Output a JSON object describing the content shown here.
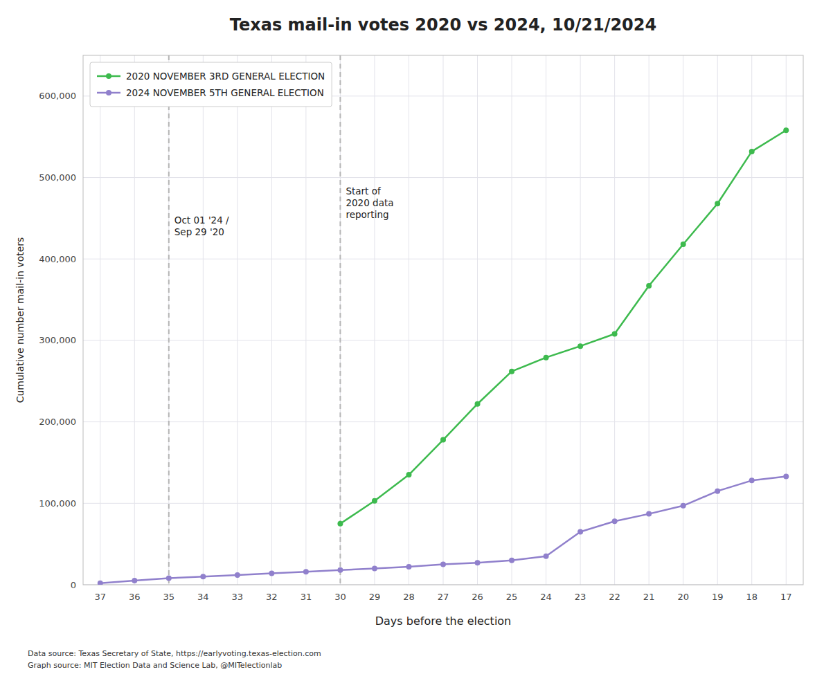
{
  "chart_data": {
    "type": "line",
    "title": "Texas mail-in votes 2020 vs 2024, 10/21/2024",
    "x_label": "Days before the election",
    "y_label": "Cumulative number mail-in voters",
    "series": [
      {
        "name": "2020 NOVEMBER 3RD GENERAL ELECTION",
        "color": "#3dba4e",
        "marker": "circle",
        "line_style": "solid",
        "x": [
          30,
          29,
          28,
          27,
          26,
          25,
          24,
          23,
          22,
          21,
          20,
          19,
          18,
          17
        ],
        "values": [
          75000,
          103000,
          135000,
          178000,
          222000,
          262000,
          279000,
          293000,
          308000,
          367000,
          418000,
          468000,
          532000,
          558000
        ]
      },
      {
        "name": "2024 NOVEMBER 5TH GENERAL ELECTION",
        "color": "#9080cc",
        "marker": "circle",
        "line_style": "solid",
        "x": [
          37,
          36,
          35,
          34,
          33,
          32,
          31,
          30,
          29,
          28,
          27,
          26,
          25,
          24,
          23,
          22,
          21,
          20,
          19,
          18,
          17
        ],
        "values": [
          2000,
          5000,
          8000,
          10000,
          12000,
          14000,
          16000,
          18000,
          20000,
          22000,
          25000,
          27000,
          30000,
          35000,
          65000,
          78000,
          87000,
          97000,
          115000,
          128000,
          133000
        ]
      }
    ],
    "xlim": [
      37.5,
      16.5
    ],
    "xticks": [
      37,
      36,
      35,
      34,
      33,
      32,
      31,
      30,
      29,
      28,
      27,
      26,
      25,
      24,
      23,
      22,
      21,
      20,
      19,
      18,
      17
    ],
    "ylim": [
      0,
      650000
    ],
    "yticks": [
      {
        "value": 0,
        "label": "0"
      },
      {
        "value": 100000,
        "label": "100,000"
      },
      {
        "value": 200000,
        "label": "200,000"
      },
      {
        "value": 300000,
        "label": "300,000"
      },
      {
        "value": 400000,
        "label": "400,000"
      },
      {
        "value": 500000,
        "label": "500,000"
      },
      {
        "value": 600000,
        "label": "600,000"
      }
    ],
    "annotations": [
      {
        "text": "Oct 01 '24 /\nSep 29 '20",
        "x": 35,
        "y": 455000
      },
      {
        "text": "Start of\n2020 data\nreporting",
        "x": 30,
        "y": 490000
      }
    ],
    "source": [
      "Data source: Texas Secretary of State, https://earlyvoting.texas-election.com",
      "Graph source: MIT Election Data and Science Lab, @MITelectionlab"
    ],
    "grid": true,
    "legend": "upper left"
  }
}
